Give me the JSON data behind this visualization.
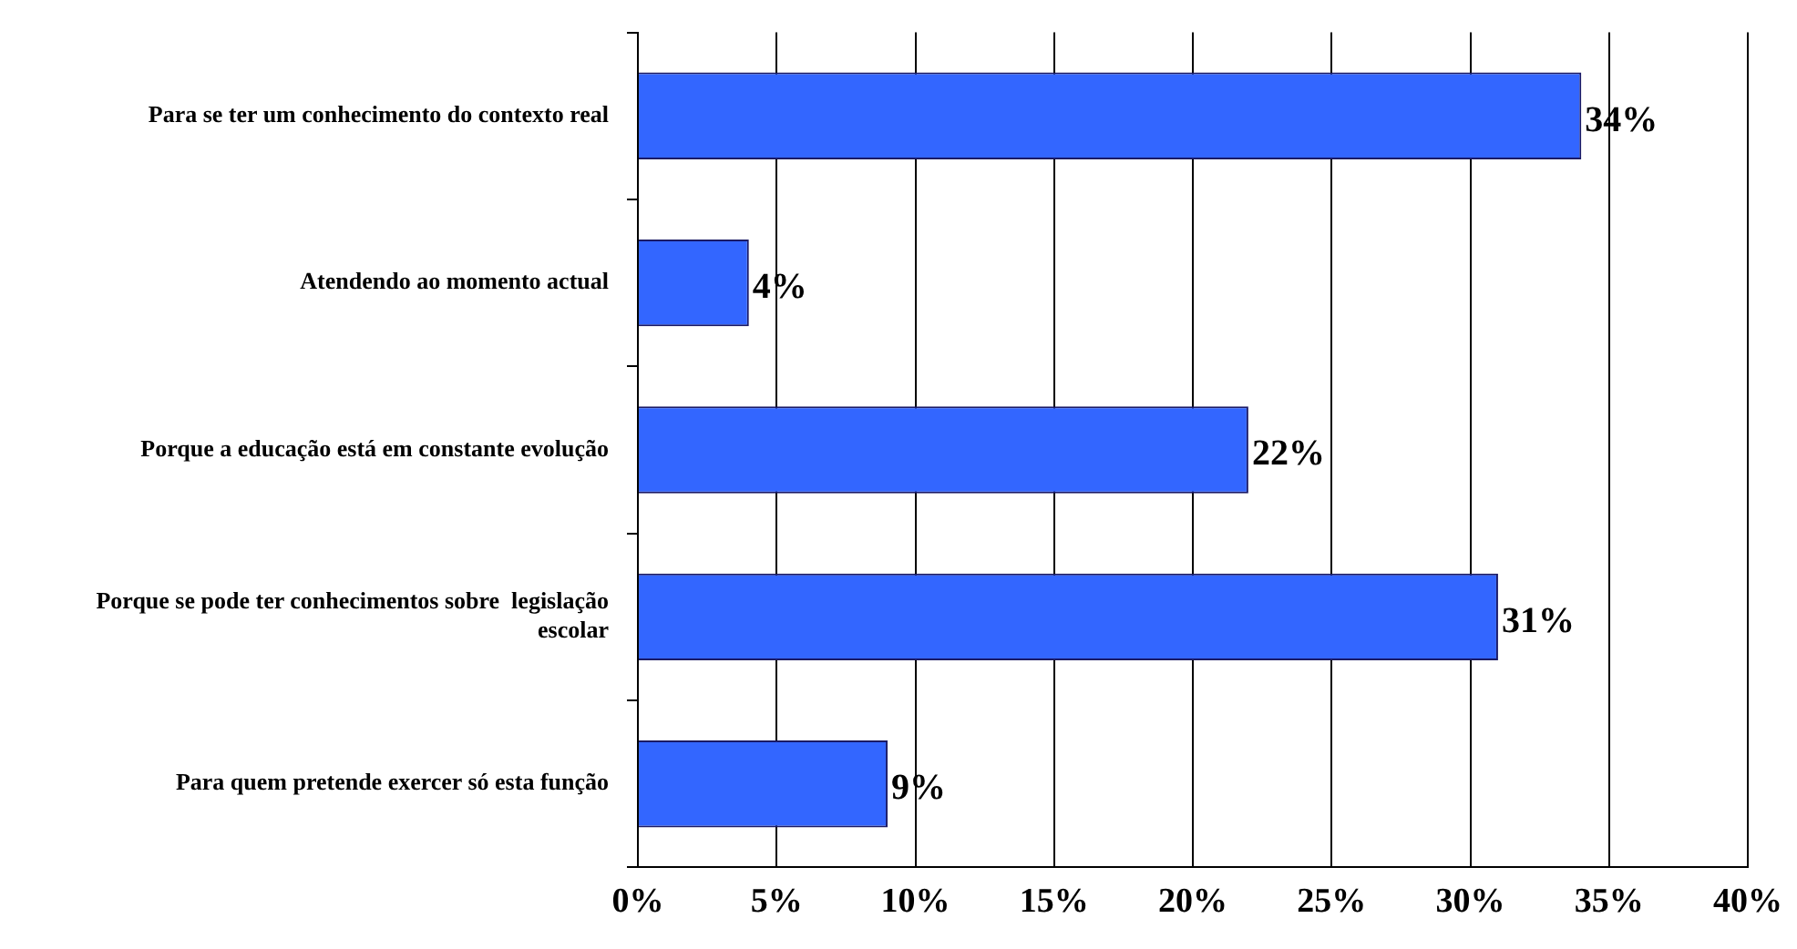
{
  "chart_data": {
    "type": "bar",
    "orientation": "horizontal",
    "categories": [
      "Para se ter um conhecimento do contexto real",
      "Atendendo ao momento actual",
      "Porque a educação está em constante evolução",
      "Porque se pode ter conhecimentos sobre  legislação escolar",
      "Para quem pretende exercer só esta função"
    ],
    "values": [
      34,
      4,
      22,
      31,
      9
    ],
    "value_labels": [
      "34%",
      "4%",
      "22%",
      "31%",
      "9%"
    ],
    "color": "#3366ff",
    "xlim": [
      0,
      40
    ],
    "xticks": [
      {
        "value": 0,
        "label": "0%"
      },
      {
        "value": 5,
        "label": "5%"
      },
      {
        "value": 10,
        "label": "10%"
      },
      {
        "value": 15,
        "label": "15%"
      },
      {
        "value": 20,
        "label": "20%"
      },
      {
        "value": 25,
        "label": "25%"
      },
      {
        "value": 30,
        "label": "30%"
      },
      {
        "value": 35,
        "label": "35%"
      },
      {
        "value": 40,
        "label": "40%"
      }
    ],
    "grid": "x",
    "legend": false
  }
}
